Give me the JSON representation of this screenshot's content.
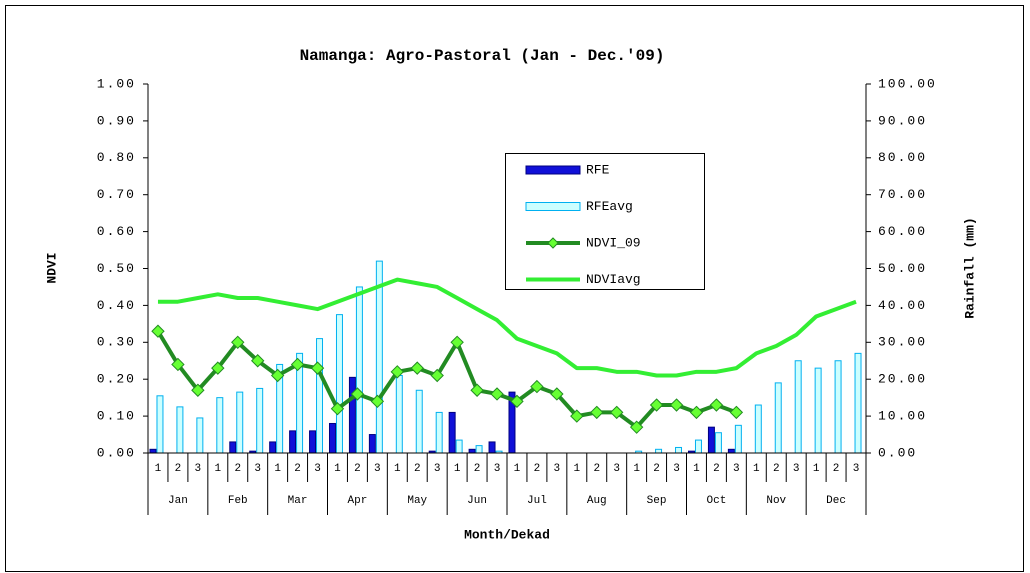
{
  "chart_data": {
    "type": "combo",
    "title": "Namanga: Agro-Pastoral (Jan - Dec.'09)",
    "x_label": "Month/Dekad",
    "y_label": "NDVI",
    "y2_label": "Rainfall (mm)",
    "categories": [
      "1",
      "2",
      "3",
      "1",
      "2",
      "3",
      "1",
      "2",
      "3",
      "1",
      "2",
      "3",
      "1",
      "2",
      "3",
      "1",
      "2",
      "3",
      "1",
      "2",
      "3",
      "1",
      "2",
      "3",
      "1",
      "2",
      "3",
      "1",
      "2",
      "3",
      "1",
      "2",
      "3",
      "1",
      "2",
      "3"
    ],
    "groups": [
      "Jan",
      "Feb",
      "Mar",
      "Apr",
      "May",
      "Jun",
      "Jul",
      "Aug",
      "Sep",
      "Oct",
      "Nov",
      "Dec"
    ],
    "ylim": [
      0,
      1
    ],
    "yticks": [
      {
        "value": 0,
        "label": "0.00"
      },
      {
        "value": 0.1,
        "label": "0.10"
      },
      {
        "value": 0.2,
        "label": "0.20"
      },
      {
        "value": 0.3,
        "label": "0.30"
      },
      {
        "value": 0.4,
        "label": "0.40"
      },
      {
        "value": 0.5,
        "label": "0.50"
      },
      {
        "value": 0.6,
        "label": "0.60"
      },
      {
        "value": 0.7,
        "label": "0.70"
      },
      {
        "value": 0.8,
        "label": "0.80"
      },
      {
        "value": 0.9,
        "label": "0.90"
      },
      {
        "value": 1,
        "label": "1.00"
      }
    ],
    "y2lim": [
      0,
      100
    ],
    "y2ticks": [
      {
        "value": 0,
        "label": "0.00"
      },
      {
        "value": 10,
        "label": "10.00"
      },
      {
        "value": 20,
        "label": "20.00"
      },
      {
        "value": 30,
        "label": "30.00"
      },
      {
        "value": 40,
        "label": "40.00"
      },
      {
        "value": 50,
        "label": "50.00"
      },
      {
        "value": 60,
        "label": "60.00"
      },
      {
        "value": 70,
        "label": "70.00"
      },
      {
        "value": 80,
        "label": "80.00"
      },
      {
        "value": 90,
        "label": "90.00"
      },
      {
        "value": 100,
        "label": "100.00"
      }
    ],
    "grid": false,
    "series": [
      {
        "name": "RFE",
        "type": "bar",
        "axis": "y2",
        "color": "#1010d8",
        "stroke": "#000080",
        "values": [
          1,
          0,
          0,
          0,
          3,
          0.5,
          3,
          6,
          6,
          8,
          20.5,
          5,
          0,
          0,
          0.5,
          11,
          1,
          3,
          16.5,
          0,
          0,
          0,
          0,
          0,
          0,
          0,
          0,
          0.5,
          7,
          1,
          0,
          0,
          0,
          0,
          0,
          0
        ]
      },
      {
        "name": "RFEavg",
        "type": "bar",
        "axis": "y2",
        "color": "#ccffff",
        "stroke": "#00b0f0",
        "values": [
          15.5,
          12.5,
          9.5,
          15,
          16.5,
          17.5,
          24,
          27,
          31,
          37.5,
          45,
          52,
          21,
          17,
          11,
          3.5,
          2,
          0.5,
          0,
          0,
          0,
          0,
          0,
          0,
          0.5,
          1,
          1.5,
          3.5,
          5.5,
          7.5,
          13,
          19,
          25,
          23,
          25,
          27
        ]
      },
      {
        "name": "NDVI_09",
        "type": "line",
        "axis": "y",
        "color": "#228b22",
        "marker": "#66ff33",
        "values": [
          0.33,
          0.24,
          0.17,
          0.23,
          0.3,
          0.25,
          0.21,
          0.24,
          0.23,
          0.12,
          0.16,
          0.14,
          0.22,
          0.23,
          0.21,
          0.3,
          0.17,
          0.16,
          0.14,
          0.18,
          0.16,
          0.1,
          0.11,
          0.11,
          0.07,
          0.13,
          0.13,
          0.11,
          0.13,
          0.11,
          null,
          null,
          null,
          null,
          null,
          null
        ]
      },
      {
        "name": "NDVIavg",
        "type": "line",
        "axis": "y",
        "color": "#33ee33",
        "values": [
          0.41,
          0.41,
          0.42,
          0.43,
          0.42,
          0.42,
          0.41,
          0.4,
          0.39,
          0.41,
          0.43,
          0.45,
          0.47,
          0.46,
          0.45,
          0.42,
          0.39,
          0.36,
          0.31,
          0.29,
          0.27,
          0.23,
          0.23,
          0.22,
          0.22,
          0.21,
          0.21,
          0.22,
          0.22,
          0.23,
          0.27,
          0.29,
          0.32,
          0.37,
          0.39,
          0.41
        ]
      }
    ]
  }
}
